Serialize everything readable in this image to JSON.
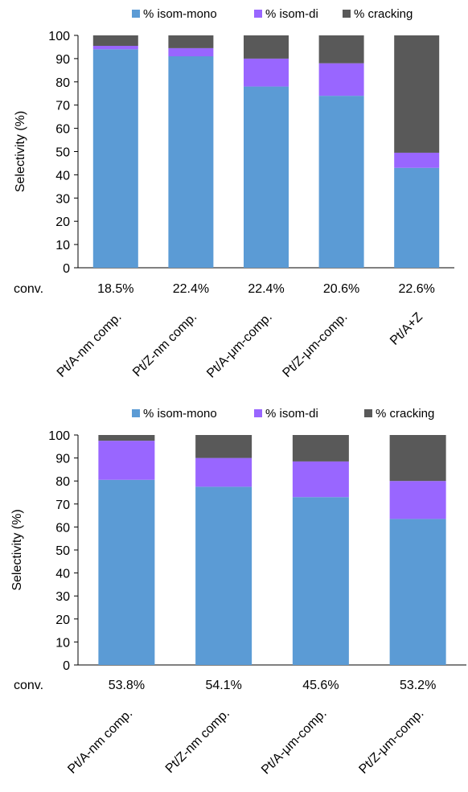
{
  "chart_data": [
    {
      "type": "bar",
      "stacked": true,
      "ylabel": "Selectivity (%)",
      "ylim": [
        0,
        100
      ],
      "yticks": [
        0,
        10,
        20,
        30,
        40,
        50,
        60,
        70,
        80,
        90,
        100
      ],
      "legend_position": "top",
      "categories": [
        "Pt/A-nm comp.",
        "Pt/Z-nm comp.",
        "Pt/A-μm-comp.",
        "Pt/Z-μm-comp.",
        "Pt/A+Z"
      ],
      "conversion_label": "conv.",
      "conversions": [
        "18.5%",
        "22.4%",
        "22.4%",
        "20.6%",
        "22.6%"
      ],
      "series": [
        {
          "name": "% isom-mono",
          "color": "#5b9bd5",
          "values": [
            94,
            91,
            78,
            74,
            43
          ]
        },
        {
          "name": "% isom-di",
          "color": "#9966ff",
          "values": [
            1.5,
            3.5,
            12,
            14,
            6.5
          ]
        },
        {
          "name": "% cracking",
          "color": "#595959",
          "values": [
            4.5,
            5.5,
            10,
            12,
            50.5
          ]
        }
      ]
    },
    {
      "type": "bar",
      "stacked": true,
      "ylabel": "Selectivity (%)",
      "ylim": [
        0,
        100
      ],
      "yticks": [
        0,
        10,
        20,
        30,
        40,
        50,
        60,
        70,
        80,
        90,
        100
      ],
      "legend_position": "top",
      "categories": [
        "Pt/A-nm comp.",
        "Pt/Z-nm comp.",
        "Pt/A-μm-comp.",
        "Pt/Z-μm-comp."
      ],
      "conversion_label": "conv.",
      "conversions": [
        "53.8%",
        "54.1%",
        "45.6%",
        "53.2%"
      ],
      "series": [
        {
          "name": "% isom-mono",
          "color": "#5b9bd5",
          "values": [
            80.5,
            77.5,
            73,
            63.5
          ]
        },
        {
          "name": "% isom-di",
          "color": "#9966ff",
          "values": [
            17,
            12.5,
            15.5,
            16.5
          ]
        },
        {
          "name": "% cracking",
          "color": "#595959",
          "values": [
            2.5,
            10,
            11.5,
            20
          ]
        }
      ]
    }
  ]
}
